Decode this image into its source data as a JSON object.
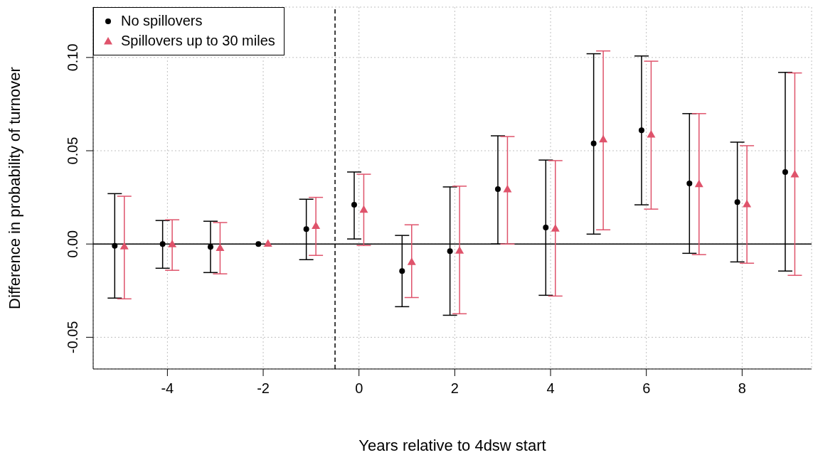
{
  "chart_data": {
    "type": "scatter",
    "xlabel": "Years relative to 4dsw start",
    "ylabel": "Difference in probability of turnover",
    "xlim": [
      -5.55,
      9.45
    ],
    "xticks": [
      -4,
      -2,
      0,
      2,
      4,
      6,
      8
    ],
    "ylim": [
      -0.067,
      0.127
    ],
    "yticks": [
      {
        "value": -0.05,
        "label": "-0.05"
      },
      {
        "value": 0,
        "label": "0.00"
      },
      {
        "value": 0.05,
        "label": "0.05"
      },
      {
        "value": 0.1,
        "label": "0.10"
      }
    ],
    "grid": true,
    "legend": "top left",
    "ref_lines": [
      {
        "axis": "y",
        "value": 0,
        "color": "#000000",
        "line_style": "solid"
      },
      {
        "axis": "x",
        "value": -0.5,
        "color": "#000000",
        "line_style": "dashed"
      }
    ],
    "series": [
      {
        "name": "No spillovers",
        "color": "#000000",
        "marker": "circle",
        "x": [
          -5.1,
          -4.1,
          -3.1,
          -2.1,
          -1.1,
          -0.1,
          0.9,
          1.9,
          2.9,
          3.9,
          4.9,
          5.9,
          6.9,
          7.9,
          8.9
        ],
        "values": [
          -0.001,
          0,
          -0.0015,
          0,
          0.008,
          0.021,
          -0.0145,
          -0.0038,
          0.0294,
          0.0088,
          0.0539,
          0.061,
          0.0325,
          0.0225,
          0.0386
        ],
        "errors": [
          [
            -0.029,
            0.027
          ],
          [
            -0.013,
            0.0126
          ],
          [
            -0.0153,
            0.0122
          ],
          null,
          [
            -0.0084,
            0.024
          ],
          [
            0.0027,
            0.0386
          ],
          [
            -0.0336,
            0.0046
          ],
          [
            -0.0382,
            0.0306
          ],
          [
            0,
            0.058
          ],
          [
            -0.0275,
            0.045
          ],
          [
            0.0053,
            0.102
          ],
          [
            0.021,
            0.1008
          ],
          [
            -0.005,
            0.0699
          ],
          [
            -0.0096,
            0.0546
          ],
          [
            -0.0145,
            0.092
          ]
        ]
      },
      {
        "name": "Spillovers up to 30 miles",
        "color": "#df536b",
        "marker": "triangle",
        "x": [
          -4.9,
          -3.9,
          -2.9,
          -1.9,
          -0.9,
          0.1,
          1.1,
          2.1,
          3.1,
          4.1,
          5.1,
          6.1,
          7.1,
          8.1,
          9.1
        ],
        "values": [
          -0.0012,
          0,
          -0.002,
          0.0003,
          0.0098,
          0.0185,
          -0.0095,
          -0.0034,
          0.0294,
          0.0084,
          0.0562,
          0.0588,
          0.0322,
          0.0214,
          0.0374
        ],
        "errors": [
          [
            -0.0294,
            0.0256
          ],
          [
            -0.0141,
            0.013
          ],
          [
            -0.016,
            0.0115
          ],
          null,
          [
            -0.0061,
            0.025
          ],
          [
            -0.0008,
            0.0374
          ],
          [
            -0.0287,
            0.0103
          ],
          [
            -0.0374,
            0.031
          ],
          [
            0,
            0.0576
          ],
          [
            -0.0279,
            0.0447
          ],
          [
            0.0076,
            0.1035
          ],
          [
            0.0187,
            0.098
          ],
          [
            -0.0057,
            0.0699
          ],
          [
            -0.0103,
            0.0527
          ],
          [
            -0.0168,
            0.0917
          ]
        ]
      }
    ]
  }
}
